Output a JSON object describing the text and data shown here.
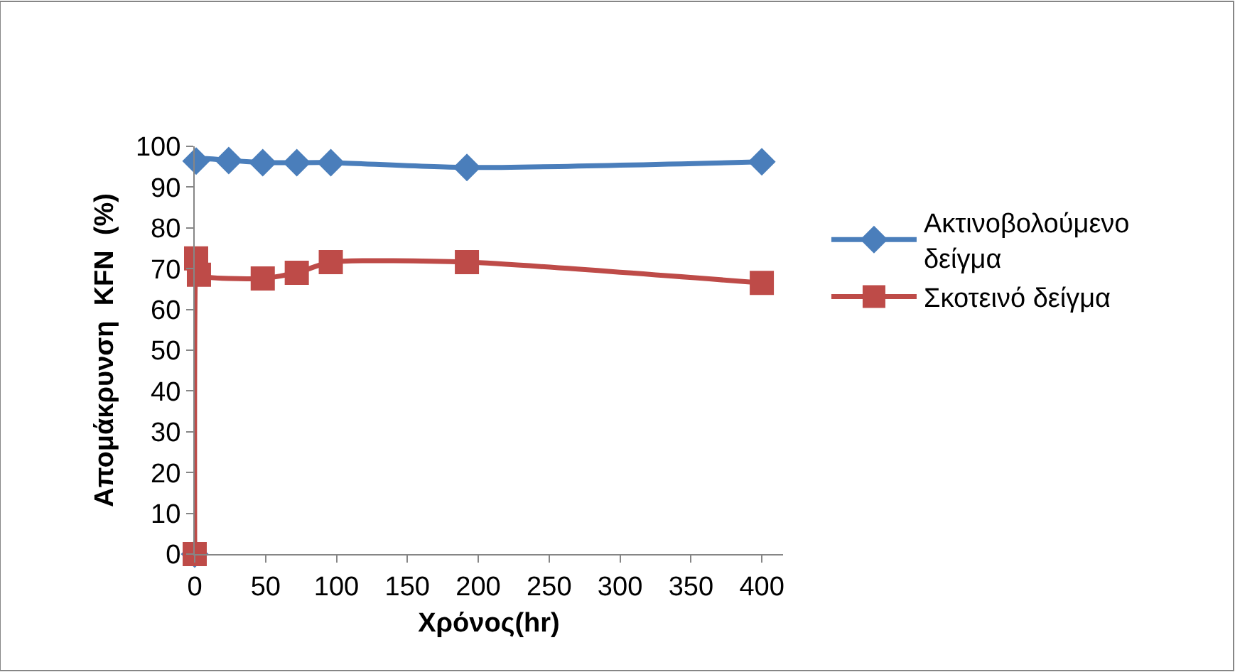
{
  "chart_data": {
    "type": "line",
    "xlabel": "Χρόνος(hr)",
    "ylabel": "Απομάκρυνση  KFN  (%)",
    "xlim": [
      0,
      415
    ],
    "xticks": [
      0,
      50,
      100,
      150,
      200,
      250,
      300,
      350,
      400
    ],
    "ylim": [
      0,
      100
    ],
    "yticks": [
      0,
      10,
      20,
      30,
      40,
      50,
      60,
      70,
      80,
      90,
      100
    ],
    "legend": "right",
    "line_style": "solid",
    "series": [
      {
        "name": "Ακτινοβολούμενο δείγμα",
        "color": "#4a7ebb",
        "marker": "diamond",
        "x": [
          0,
          1,
          24,
          48,
          72,
          96,
          192,
          400
        ],
        "values": [
          0,
          96.4,
          96.5,
          96,
          96,
          96,
          94.8,
          96.2
        ]
      },
      {
        "name": "Σκοτεινό δείγμα",
        "color": "#be4b48",
        "marker": "square",
        "x": [
          0,
          1,
          3,
          48,
          72,
          96,
          192,
          400
        ],
        "values": [
          0,
          72.5,
          68.5,
          67.6,
          69,
          71.6,
          71.6,
          66.5
        ]
      }
    ]
  }
}
